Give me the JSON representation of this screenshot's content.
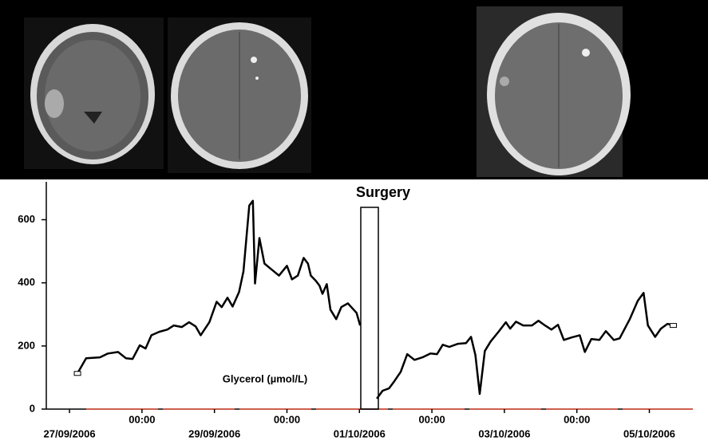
{
  "chart_data": {
    "type": "line",
    "annotations": [
      "Surgery",
      "Glycerol (µmol/L)"
    ],
    "color": "#000000",
    "x": [
      0.11,
      0.23,
      0.42,
      0.53,
      0.67,
      0.78,
      0.87,
      0.97,
      1.05,
      1.13,
      1.24,
      1.35,
      1.44,
      1.55,
      1.65,
      1.74,
      1.81,
      1.93,
      2.03,
      2.1,
      2.18,
      2.25,
      2.34,
      2.4,
      2.48,
      2.53,
      2.56,
      2.62,
      2.69,
      2.78,
      2.89,
      3.0,
      3.07,
      3.15,
      3.23,
      3.29,
      3.33,
      3.4,
      3.45,
      3.49,
      3.55,
      3.6,
      3.68,
      3.75,
      3.84,
      3.96,
      4.01,
      4.2,
      4.24,
      4.32,
      4.41,
      4.48,
      4.57,
      4.66,
      4.76,
      4.87,
      4.98,
      5.07,
      5.15,
      5.24,
      5.36,
      5.47,
      5.54,
      5.6,
      5.66,
      5.73,
      5.81,
      5.92,
      6.02,
      6.08,
      6.16,
      6.26,
      6.38,
      6.47,
      6.56,
      6.65,
      6.74,
      6.82,
      6.93,
      7.04,
      7.11,
      7.2,
      7.31,
      7.4,
      7.51,
      7.59,
      7.73,
      7.84,
      7.92,
      7.98,
      8.08,
      8.16,
      8.25,
      8.33
    ],
    "values": [
      113,
      161,
      164,
      176,
      181,
      161,
      159,
      202,
      192,
      234,
      245,
      252,
      265,
      260,
      275,
      262,
      234,
      275,
      340,
      323,
      353,
      325,
      371,
      436,
      645,
      660,
      398,
      542,
      461,
      444,
      423,
      454,
      411,
      423,
      479,
      461,
      423,
      406,
      391,
      365,
      396,
      315,
      285,
      323,
      335,
      305,
      265,
      null,
      33,
      58,
      66,
      88,
      118,
      174,
      156,
      164,
      176,
      174,
      204,
      197,
      207,
      209,
      229,
      171,
      48,
      184,
      214,
      245,
      275,
      255,
      277,
      265,
      265,
      280,
      265,
      252,
      267,
      219,
      227,
      234,
      181,
      222,
      219,
      247,
      219,
      224,
      285,
      343,
      368,
      265,
      229,
      255,
      270,
      265
    ],
    "xlim": [
      -0.32,
      8.6
    ],
    "ylim": [
      0,
      720
    ],
    "xticks": [
      {
        "value": 0,
        "label": "27/09/2006"
      },
      {
        "value": 1,
        "label": "00:00"
      },
      {
        "value": 2,
        "label": "29/09/2006"
      },
      {
        "value": 3,
        "label": "00:00"
      },
      {
        "value": 4,
        "label": "01/10/2006"
      },
      {
        "value": 5,
        "label": "00:00"
      },
      {
        "value": 6,
        "label": "03/10/2006"
      },
      {
        "value": 7,
        "label": "00:00"
      },
      {
        "value": 8,
        "label": "05/10/2006"
      }
    ],
    "yticks": [
      0,
      200,
      400,
      600
    ]
  }
}
